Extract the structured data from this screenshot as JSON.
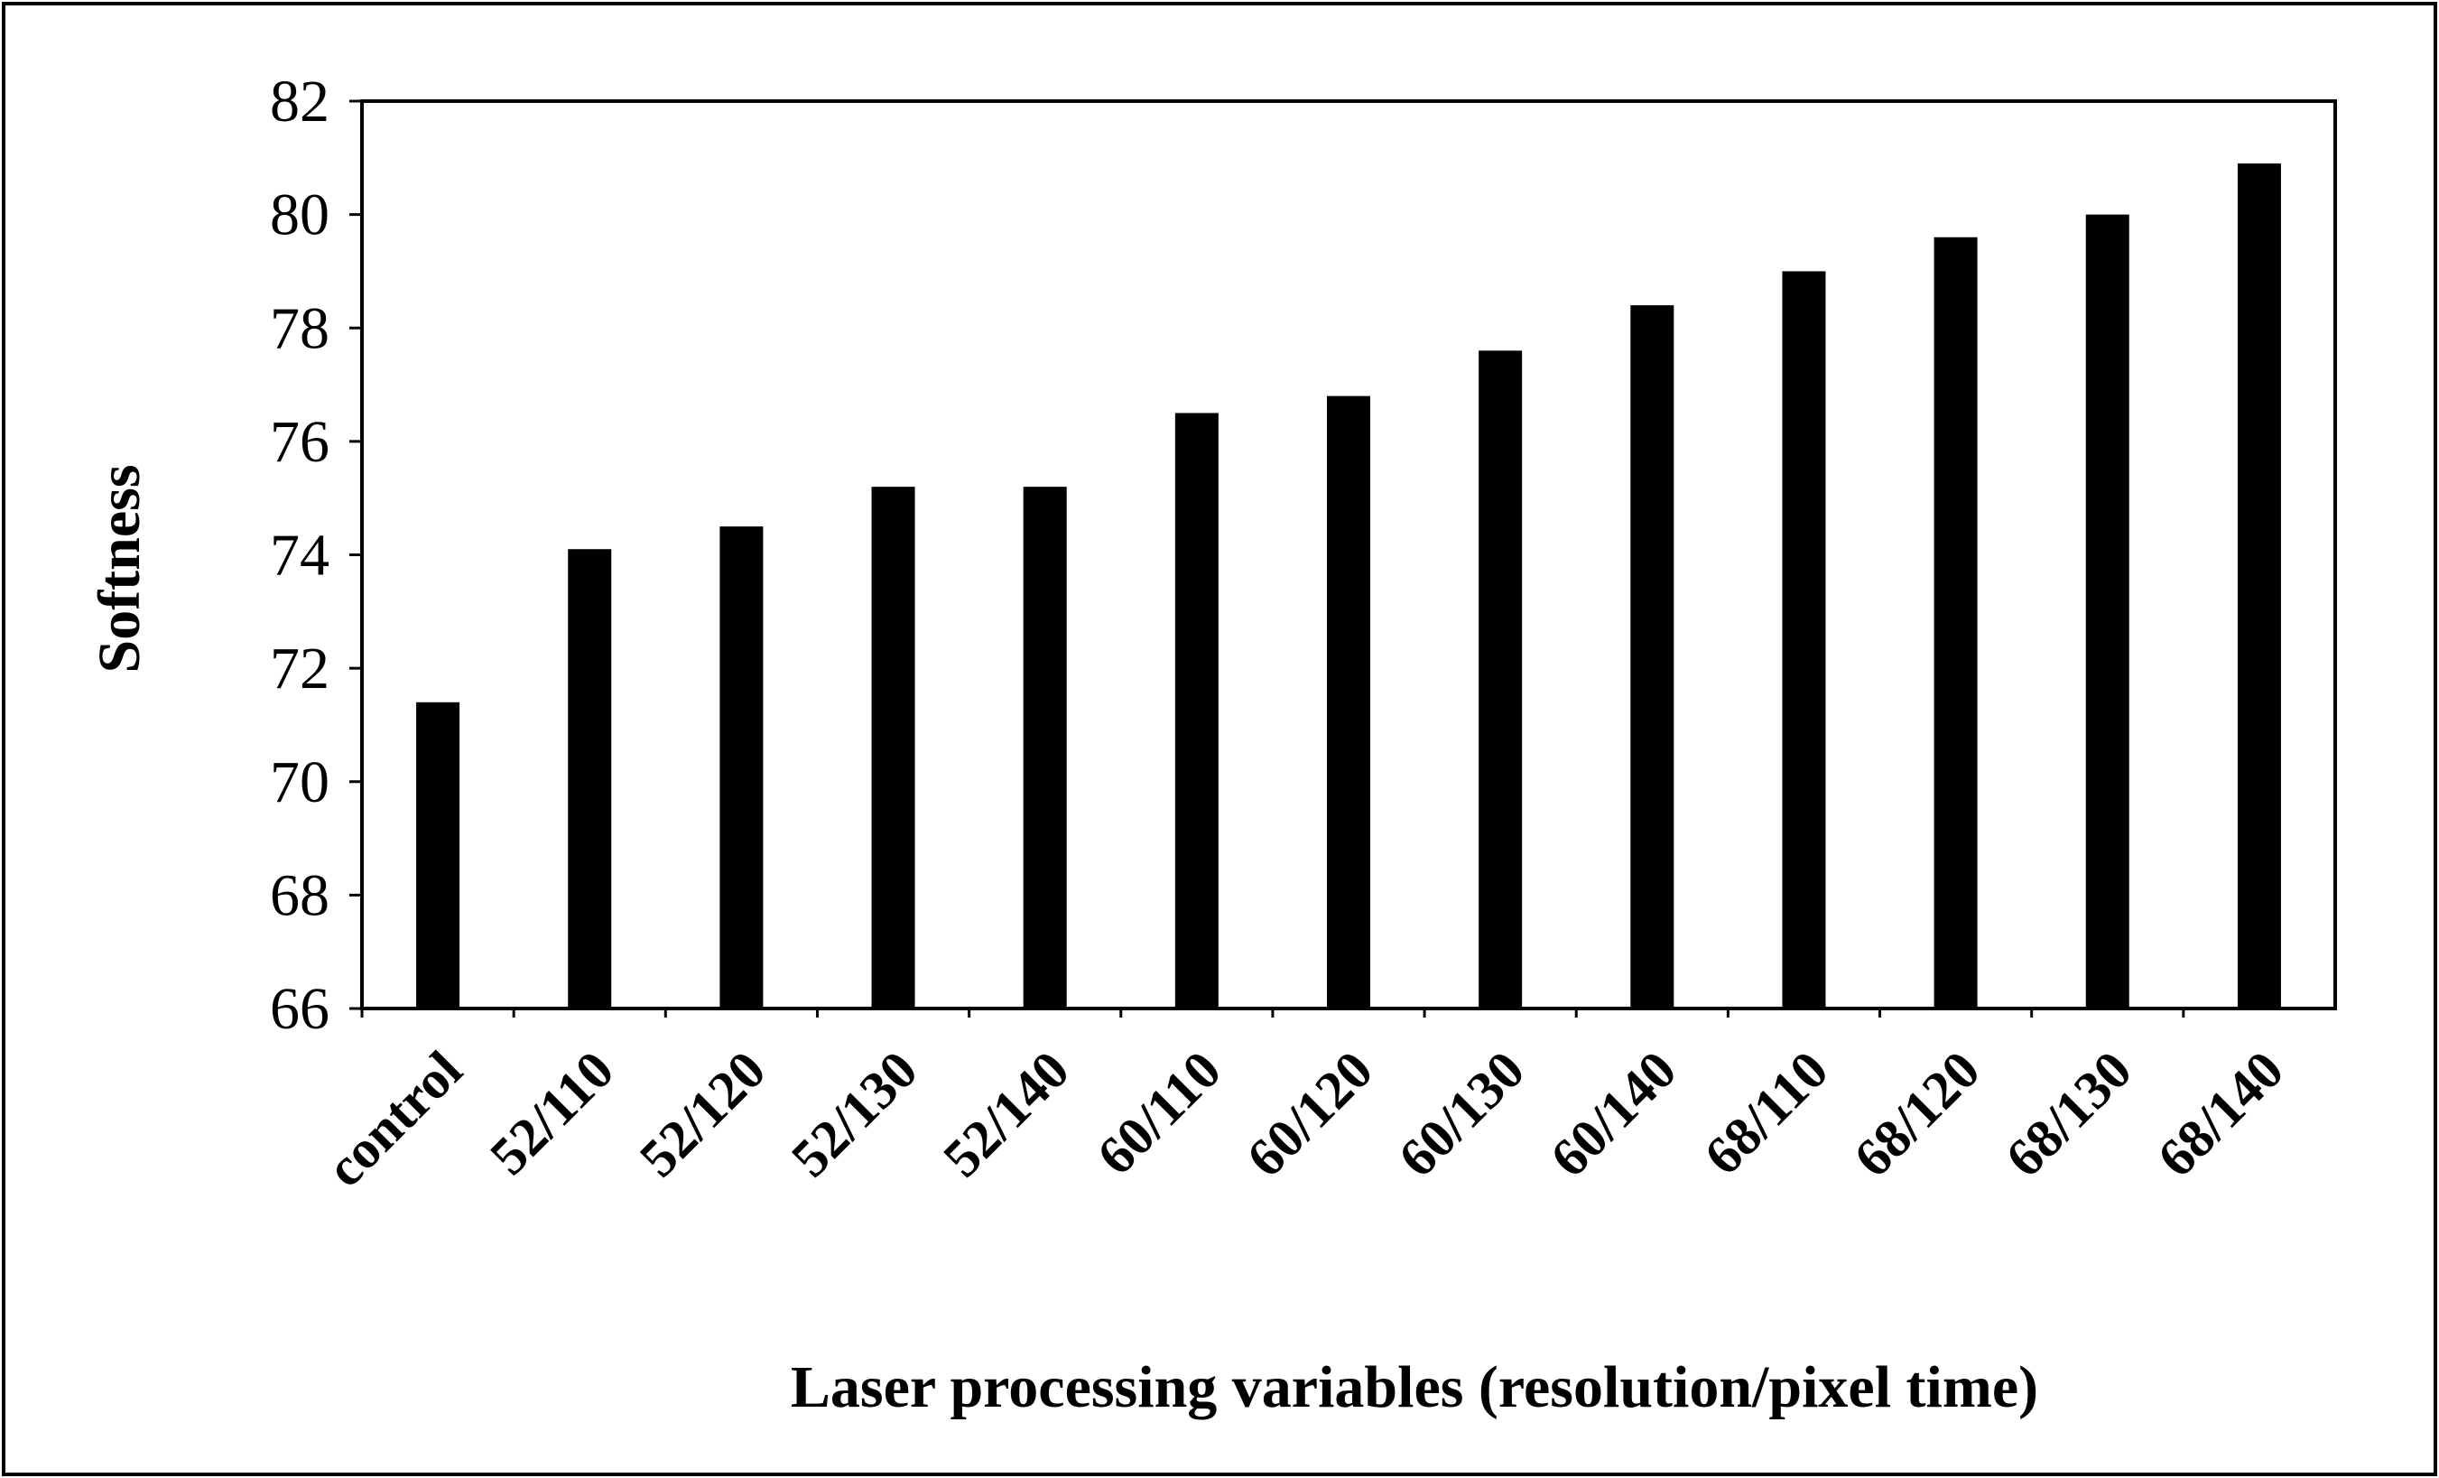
{
  "chart_data": {
    "type": "bar",
    "title": "",
    "xlabel": "Laser processing variables (resolution/pixel time)",
    "ylabel": "Softness",
    "ylim": [
      66,
      82
    ],
    "yticks": [
      66,
      68,
      70,
      72,
      74,
      76,
      78,
      80,
      82
    ],
    "categories": [
      "control",
      "52/110",
      "52/120",
      "52/130",
      "52/140",
      "60/110",
      "60/120",
      "60/130",
      "60/140",
      "68/110",
      "68/120",
      "68/130",
      "68/140"
    ],
    "values": [
      71.4,
      74.1,
      74.5,
      75.2,
      75.2,
      76.5,
      76.8,
      77.6,
      78.4,
      79.0,
      79.6,
      80.0,
      80.9
    ],
    "bar_color": "#000000",
    "grid": false,
    "legend": "none"
  }
}
